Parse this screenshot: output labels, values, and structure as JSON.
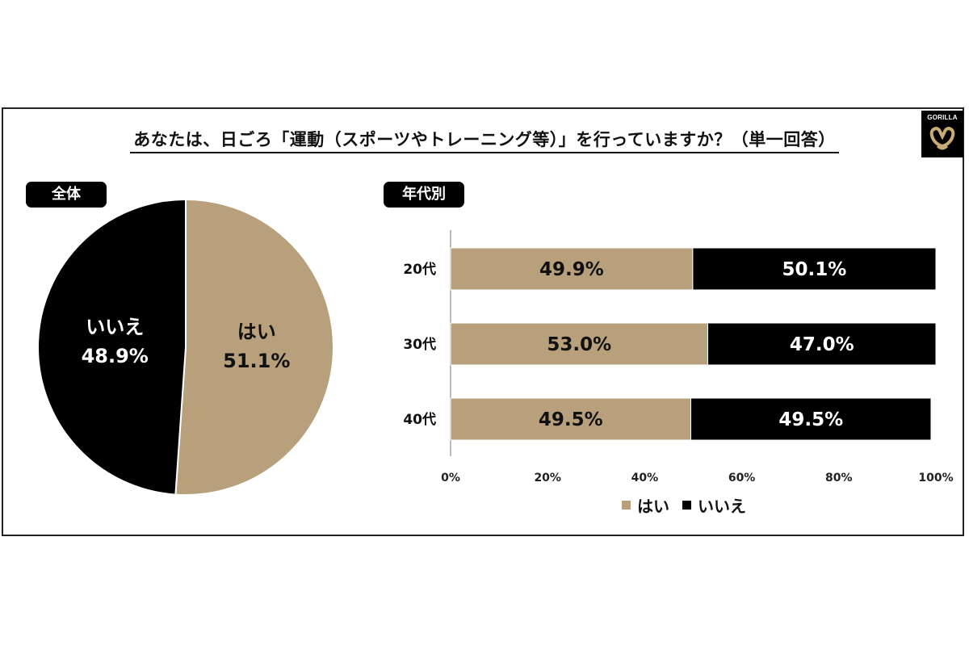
{
  "title": "あなたは、日ごろ「運動（スポーツやトレーニング等）」を行っていますか？（単一回答）",
  "logo": {
    "text": "GORILLA",
    "icon": "gorilla-logo-icon"
  },
  "colors": {
    "yes": "#b9a07c",
    "no": "#000000",
    "axis": "#bbbbbb"
  },
  "chart_data": [
    {
      "type": "pie",
      "title": "全体",
      "slices": [
        {
          "label": "はい",
          "value": 51.1,
          "display": "51.1%"
        },
        {
          "label": "いいえ",
          "value": 48.9,
          "display": "48.9%"
        }
      ]
    },
    {
      "type": "bar",
      "stacked": true,
      "orientation": "horizontal",
      "title": "年代別",
      "categories": [
        "20代",
        "30代",
        "40代"
      ],
      "series": [
        {
          "name": "はい",
          "values": [
            49.9,
            53.0,
            49.5
          ],
          "labels": [
            "49.9%",
            "53.0%",
            "49.5%"
          ]
        },
        {
          "name": "いいえ",
          "values": [
            50.1,
            47.0,
            49.5
          ],
          "labels": [
            "50.1%",
            "47.0%",
            "49.5%"
          ]
        }
      ],
      "xlim": [
        0,
        100
      ],
      "xticks": [
        "0%",
        "20%",
        "40%",
        "60%",
        "80%",
        "100%"
      ],
      "legend": "bottom"
    }
  ]
}
